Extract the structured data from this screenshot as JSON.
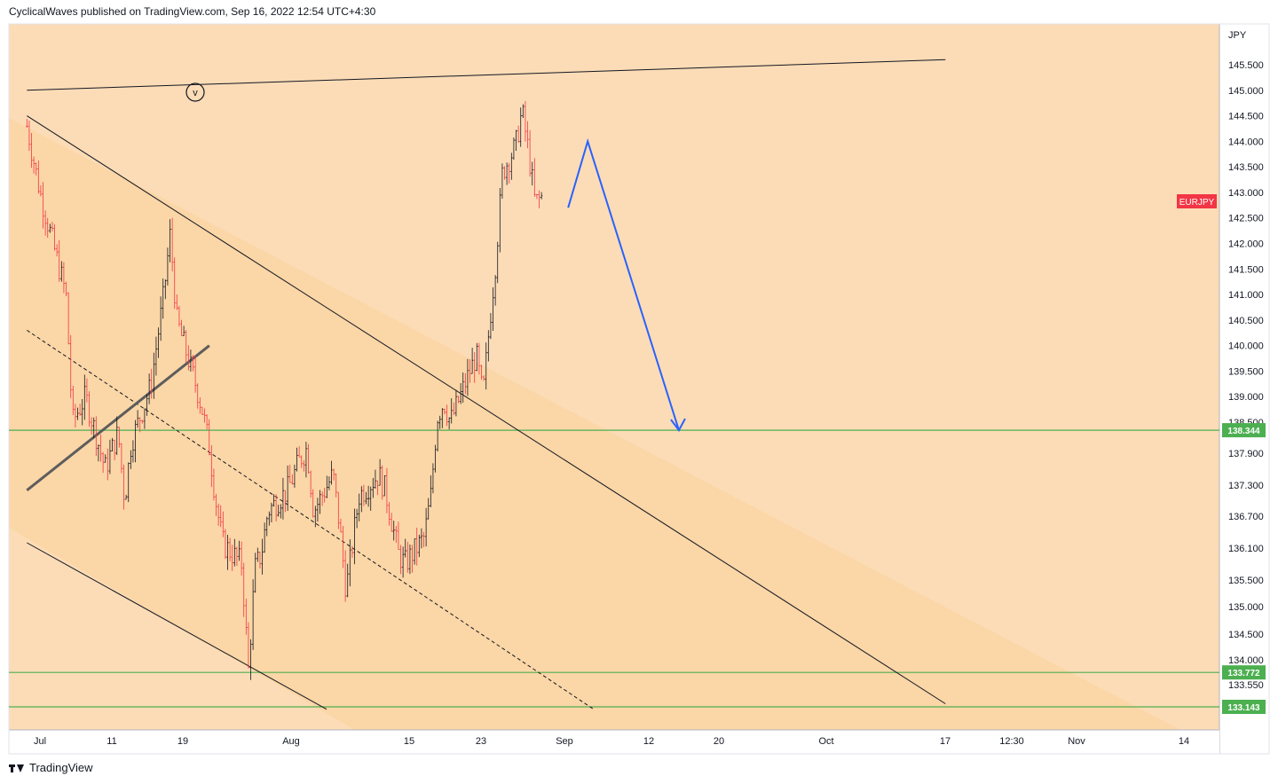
{
  "header": {
    "publisher_line": "CyclicalWaves published on TradingView.com, Sep 16, 2022 12:54 UTC+4:30"
  },
  "footer": {
    "brand": "TradingView"
  },
  "chart_data": {
    "type": "candlestick",
    "symbol": "EURJPY",
    "currency": "JPY",
    "y_ticks": [
      "145.500",
      "145.000",
      "144.500",
      "144.000",
      "143.500",
      "143.000",
      "142.500",
      "142.000",
      "141.500",
      "141.000",
      "140.500",
      "140.000",
      "139.500",
      "139.000",
      "138.500",
      "137.900",
      "137.300",
      "136.700",
      "136.100",
      "135.500",
      "135.000",
      "134.500",
      "134.000",
      "133.550"
    ],
    "x_ticks": [
      "Jul",
      "11",
      "19",
      "Aug",
      "15",
      "23",
      "Sep",
      "12",
      "20",
      "Oct",
      "17",
      "12:30",
      "Nov",
      "14"
    ],
    "levels": [
      {
        "label": "138.344",
        "value": 138.344,
        "color": "#4caf50"
      },
      {
        "label": "133.772",
        "value": 133.772,
        "color": "#4caf50"
      },
      {
        "label": "133.143",
        "value": 133.143,
        "color": "#4caf50"
      }
    ],
    "wave_label": "v",
    "up_color": "#131722",
    "down_color": "#f23645",
    "projection_color": "#2962ff",
    "background_color": "#fcdcb6",
    "channel_fill_color": "#fbd6a6",
    "price_path": [
      [
        "Jun 29",
        144.3
      ],
      [
        "Jul 1",
        143.0
      ],
      [
        "Jul 5",
        141.0
      ],
      [
        "Jul 6",
        138.5
      ],
      [
        "Jul 8",
        139.0
      ],
      [
        "Jul 11",
        137.6
      ],
      [
        "Jul 13",
        138.3
      ],
      [
        "Jul 14",
        137.0
      ],
      [
        "Jul 15",
        138.1
      ],
      [
        "Jul 18",
        139.2
      ],
      [
        "Jul 20",
        141.0
      ],
      [
        "Jul 21",
        142.2
      ],
      [
        "Jul 22",
        140.5
      ],
      [
        "Jul 25",
        139.2
      ],
      [
        "Jul 26",
        138.7
      ],
      [
        "Jul 27",
        138.0
      ],
      [
        "Jul 28",
        137.0
      ],
      [
        "Jul 29",
        136.2
      ],
      [
        "Aug 1",
        135.8
      ],
      [
        "Aug 2",
        133.8
      ],
      [
        "Aug 3",
        135.7
      ],
      [
        "Aug 4",
        136.0
      ],
      [
        "Aug 5",
        136.8
      ],
      [
        "Aug 8",
        137.2
      ],
      [
        "Aug 10",
        137.8
      ],
      [
        "Aug 11",
        138.0
      ],
      [
        "Aug 12",
        136.8
      ],
      [
        "Aug 15",
        137.5
      ],
      [
        "Aug 16",
        136.5
      ],
      [
        "Aug 17",
        135.3
      ],
      [
        "Aug 18",
        136.2
      ],
      [
        "Aug 19",
        137.1
      ],
      [
        "Aug 22",
        137.5
      ],
      [
        "Aug 23",
        137.2
      ],
      [
        "Aug 24",
        136.6
      ],
      [
        "Aug 25",
        136.0
      ],
      [
        "Aug 26",
        135.8
      ],
      [
        "Aug 29",
        136.3
      ],
      [
        "Aug 30",
        137.1
      ],
      [
        "Aug 31",
        138.6
      ],
      [
        "Sep 1",
        138.9
      ],
      [
        "Sep 2",
        138.5
      ],
      [
        "Sep 5",
        139.5
      ],
      [
        "Sep 6",
        139.8
      ],
      [
        "Sep 7",
        139.0
      ],
      [
        "Sep 8",
        140.4
      ],
      [
        "Sep 9",
        141.7
      ],
      [
        "Sep 10",
        143.4
      ],
      [
        "Sep 12",
        143.9
      ],
      [
        "Sep 13",
        144.6
      ],
      [
        "Sep 14",
        143.8
      ],
      [
        "Sep 15",
        142.8
      ],
      [
        "Sep 16",
        142.9
      ]
    ],
    "projection_path": [
      [
        "Sep 16",
        142.7
      ],
      [
        "Sep 19",
        144.0
      ],
      [
        "Oct 3",
        138.344
      ]
    ],
    "trendlines": [
      {
        "style": "solid",
        "from": [
          "Jun 29",
          145.0
        ],
        "to": [
          "Nov 17",
          145.6
        ]
      },
      {
        "style": "solid",
        "from": [
          "Jun 29",
          144.5
        ],
        "to": [
          "Nov 17",
          133.2
        ]
      },
      {
        "style": "solid",
        "from": [
          "Jun 29",
          136.2
        ],
        "to": [
          "Aug 14",
          133.1
        ]
      },
      {
        "style": "dashed",
        "from": [
          "Jun 29",
          140.3
        ],
        "to": [
          "Sep 24",
          133.1
        ]
      },
      {
        "style": "thick",
        "from": [
          "Jun 29",
          137.2
        ],
        "to": [
          "Jul 27",
          140.0
        ]
      }
    ]
  }
}
